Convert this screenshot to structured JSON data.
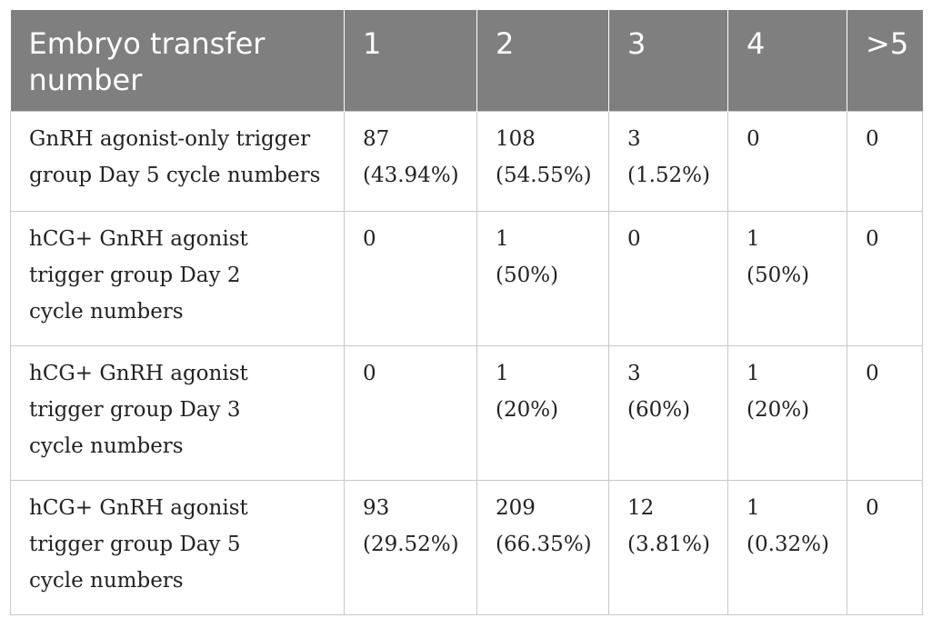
{
  "table": {
    "headers": [
      "Embryo transfer number",
      "1",
      "2",
      "3",
      "4",
      ">5"
    ],
    "header_line1": "Embryo transfer",
    "header_line2": "number",
    "rows": [
      {
        "label_lines": [
          "GnRH agonist-only trigger",
          "group Day 5 cycle numbers"
        ],
        "cells": [
          {
            "count": "87",
            "pct": "(43.94%)"
          },
          {
            "count": "108",
            "pct": "(54.55%)"
          },
          {
            "count": "3",
            "pct": "(1.52%)"
          },
          {
            "count": "0",
            "pct": ""
          },
          {
            "count": "0",
            "pct": ""
          }
        ]
      },
      {
        "label_lines": [
          "hCG+ GnRH agonist",
          "trigger group Day 2",
          "cycle numbers"
        ],
        "cells": [
          {
            "count": "0",
            "pct": ""
          },
          {
            "count": "1",
            "pct": "(50%)"
          },
          {
            "count": "0",
            "pct": ""
          },
          {
            "count": "1",
            "pct": "(50%)"
          },
          {
            "count": "0",
            "pct": ""
          }
        ]
      },
      {
        "label_lines": [
          "hCG+ GnRH agonist",
          "trigger group Day 3",
          "cycle numbers"
        ],
        "cells": [
          {
            "count": "0",
            "pct": ""
          },
          {
            "count": "1",
            "pct": "(20%)"
          },
          {
            "count": "3",
            "pct": "(60%)"
          },
          {
            "count": "1",
            "pct": "(20%)"
          },
          {
            "count": "0",
            "pct": ""
          }
        ]
      },
      {
        "label_lines": [
          "hCG+ GnRH agonist",
          "trigger group Day 5",
          "cycle numbers"
        ],
        "cells": [
          {
            "count": "93",
            "pct": "(29.52%)"
          },
          {
            "count": "209",
            "pct": "(66.35%)"
          },
          {
            "count": "12",
            "pct": "(3.81%)"
          },
          {
            "count": "1",
            "pct": "(0.32%)"
          },
          {
            "count": "0",
            "pct": ""
          }
        ]
      }
    ]
  }
}
